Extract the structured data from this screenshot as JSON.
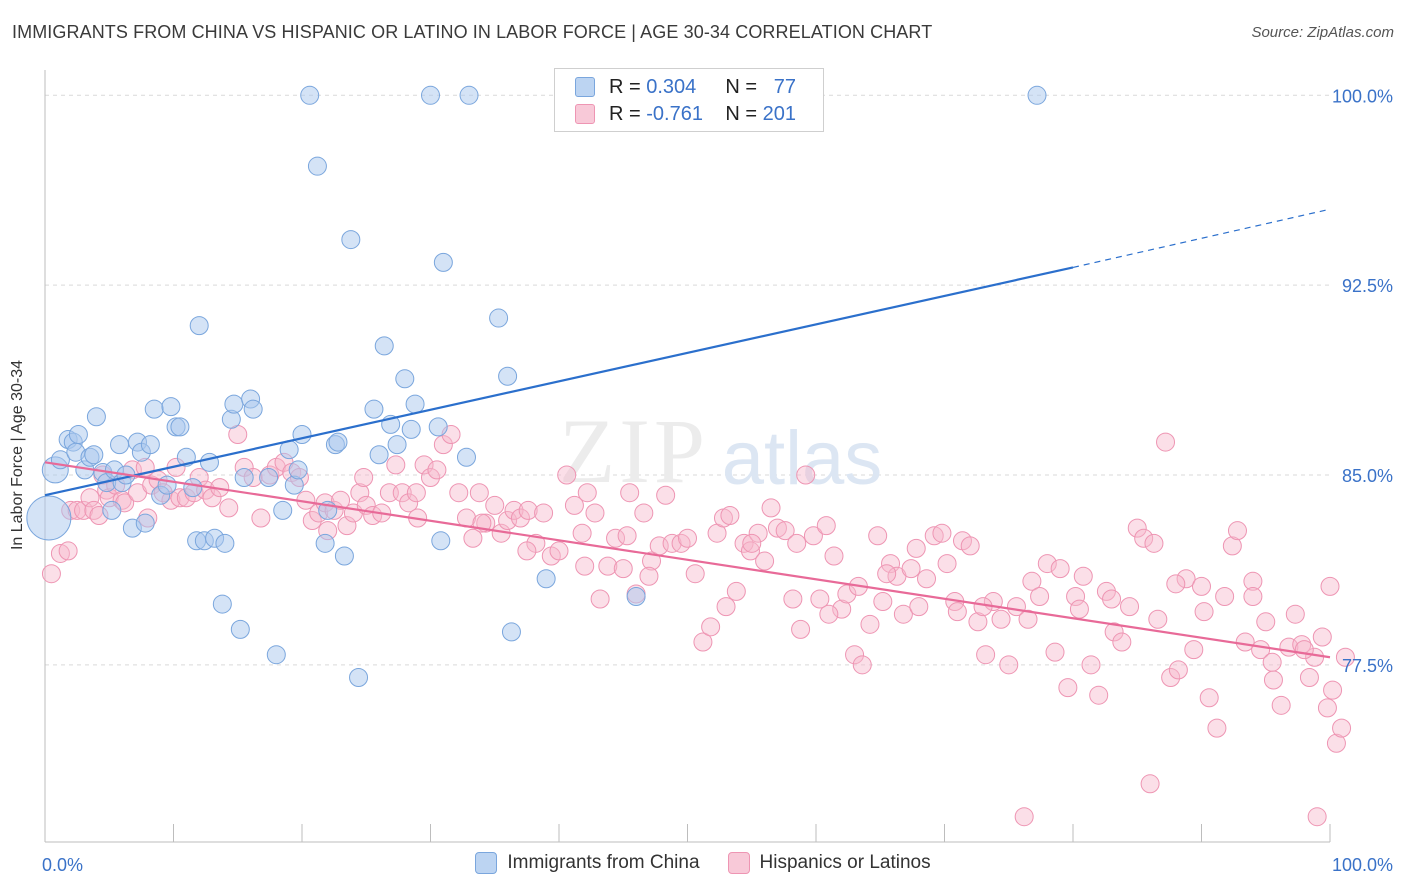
{
  "header": {
    "title": "IMMIGRANTS FROM CHINA VS HISPANIC OR LATINO IN LABOR FORCE | AGE 30-34 CORRELATION CHART",
    "source": "Source: ZipAtlas.com"
  },
  "watermark": {
    "zip": "ZIP",
    "atlas": "atlas"
  },
  "legend": {
    "rows": [
      {
        "r_label": "R =",
        "r_value": "0.304",
        "n_label": "N =",
        "n_value": "77"
      },
      {
        "r_label": "R =",
        "r_value": "-0.761",
        "n_label": "N =",
        "n_value": "201"
      }
    ]
  },
  "bottom_legend": {
    "items": [
      "Immigrants from China",
      "Hispanics or Latinos"
    ]
  },
  "colors": {
    "blue_fill": "#a9c8ee",
    "blue_stroke": "#7aa6dd",
    "blue_line": "#2b6fcc",
    "pink_fill": "#f6b9cd",
    "pink_stroke": "#ee95b3",
    "pink_line": "#e86a98",
    "axis_text": "#3a72c8",
    "grid": "#d9d9d9"
  },
  "chart_data": {
    "type": "scatter",
    "title": "IMMIGRANTS FROM CHINA VS HISPANIC OR LATINO IN LABOR FORCE | AGE 30-34 CORRELATION CHART",
    "xlabel": "",
    "ylabel": "In Labor Force | Age 30-34",
    "xlim": [
      0,
      100
    ],
    "ylim": [
      70.5,
      101
    ],
    "x_tick_labels": [
      {
        "value": 0,
        "label": "0.0%"
      },
      {
        "value": 100,
        "label": "100.0%"
      }
    ],
    "y_ticks": [
      {
        "value": 77.5,
        "label": "77.5%"
      },
      {
        "value": 85.0,
        "label": "85.0%"
      },
      {
        "value": 92.5,
        "label": "92.5%"
      },
      {
        "value": 100.0,
        "label": "100.0%"
      }
    ],
    "grid": true,
    "legend_position": "top-center",
    "series": [
      {
        "name": "Immigrants from China",
        "color": "#a9c8ee",
        "trend": {
          "x0": 0,
          "y0": 84.2,
          "x1": 80,
          "y1": 93.2,
          "dashed_to_x": 100,
          "dashed_to_y": 95.5
        },
        "points": [
          [
            0.3,
            83.3
          ],
          [
            0.8,
            85.2
          ],
          [
            1.2,
            85.6
          ],
          [
            1.8,
            86.4
          ],
          [
            2.2,
            86.3
          ],
          [
            2.4,
            85.9
          ],
          [
            2.6,
            86.6
          ],
          [
            3.1,
            85.2
          ],
          [
            3.5,
            85.7
          ],
          [
            3.8,
            85.8
          ],
          [
            4.0,
            87.3
          ],
          [
            4.5,
            85.1
          ],
          [
            4.8,
            84.7
          ],
          [
            5.2,
            83.6
          ],
          [
            5.4,
            85.2
          ],
          [
            5.8,
            86.2
          ],
          [
            6.0,
            84.7
          ],
          [
            6.3,
            85.0
          ],
          [
            6.8,
            82.9
          ],
          [
            7.2,
            86.3
          ],
          [
            7.5,
            85.9
          ],
          [
            7.8,
            83.1
          ],
          [
            8.2,
            86.2
          ],
          [
            8.5,
            87.6
          ],
          [
            9.0,
            84.2
          ],
          [
            9.5,
            84.6
          ],
          [
            9.8,
            87.7
          ],
          [
            10.2,
            86.9
          ],
          [
            10.5,
            86.9
          ],
          [
            11.0,
            85.7
          ],
          [
            11.5,
            84.5
          ],
          [
            11.8,
            82.4
          ],
          [
            12.0,
            90.9
          ],
          [
            12.4,
            82.4
          ],
          [
            12.8,
            85.5
          ],
          [
            13.2,
            82.5
          ],
          [
            13.8,
            79.9
          ],
          [
            14.0,
            82.3
          ],
          [
            14.5,
            87.2
          ],
          [
            14.7,
            87.8
          ],
          [
            15.2,
            78.9
          ],
          [
            15.5,
            84.9
          ],
          [
            16.0,
            88.0
          ],
          [
            16.2,
            87.6
          ],
          [
            17.4,
            84.9
          ],
          [
            18.0,
            77.9
          ],
          [
            18.5,
            83.6
          ],
          [
            19.0,
            86.0
          ],
          [
            19.4,
            84.6
          ],
          [
            19.7,
            85.2
          ],
          [
            20.0,
            86.6
          ],
          [
            20.6,
            100.0
          ],
          [
            21.2,
            97.2
          ],
          [
            21.8,
            82.3
          ],
          [
            22.0,
            83.6
          ],
          [
            22.6,
            86.2
          ],
          [
            22.8,
            86.3
          ],
          [
            23.3,
            81.8
          ],
          [
            23.8,
            94.3
          ],
          [
            24.4,
            77.0
          ],
          [
            25.6,
            87.6
          ],
          [
            26.0,
            85.8
          ],
          [
            26.4,
            90.1
          ],
          [
            26.9,
            87.0
          ],
          [
            27.4,
            86.2
          ],
          [
            28.0,
            88.8
          ],
          [
            28.5,
            86.8
          ],
          [
            28.8,
            87.8
          ],
          [
            30.0,
            100.0
          ],
          [
            30.6,
            86.9
          ],
          [
            30.8,
            82.4
          ],
          [
            31.0,
            93.4
          ],
          [
            32.8,
            85.7
          ],
          [
            33.0,
            100.0
          ],
          [
            35.3,
            91.2
          ],
          [
            36.0,
            88.9
          ],
          [
            36.3,
            78.8
          ],
          [
            39.0,
            80.9
          ],
          [
            46.0,
            80.2
          ],
          [
            77.2,
            100.0
          ]
        ]
      },
      {
        "name": "Hispanics or Latinos",
        "color": "#f6b9cd",
        "trend": {
          "x0": 0,
          "y0": 85.5,
          "x1": 100,
          "y1": 77.8
        },
        "points": [
          [
            0.5,
            81.1
          ],
          [
            1.2,
            81.9
          ],
          [
            1.8,
            82.0
          ],
          [
            2.0,
            83.6
          ],
          [
            2.5,
            83.6
          ],
          [
            3.0,
            83.6
          ],
          [
            3.5,
            84.1
          ],
          [
            3.8,
            83.6
          ],
          [
            4.2,
            83.4
          ],
          [
            4.5,
            85.0
          ],
          [
            4.8,
            84.4
          ],
          [
            5.0,
            84.1
          ],
          [
            5.5,
            84.6
          ],
          [
            6.0,
            84.0
          ],
          [
            6.2,
            83.9
          ],
          [
            6.8,
            85.2
          ],
          [
            7.2,
            84.3
          ],
          [
            7.8,
            85.3
          ],
          [
            8.0,
            83.3
          ],
          [
            8.3,
            84.6
          ],
          [
            8.8,
            84.8
          ],
          [
            9.2,
            84.3
          ],
          [
            9.8,
            84.0
          ],
          [
            10.2,
            85.3
          ],
          [
            10.5,
            84.1
          ],
          [
            11.0,
            84.1
          ],
          [
            11.6,
            84.3
          ],
          [
            12.0,
            84.9
          ],
          [
            12.5,
            84.4
          ],
          [
            13.0,
            84.1
          ],
          [
            13.6,
            84.5
          ],
          [
            14.3,
            83.7
          ],
          [
            15.0,
            86.6
          ],
          [
            15.5,
            85.3
          ],
          [
            16.2,
            84.9
          ],
          [
            16.8,
            83.3
          ],
          [
            17.5,
            85.0
          ],
          [
            18.0,
            85.3
          ],
          [
            18.6,
            85.5
          ],
          [
            19.2,
            85.1
          ],
          [
            19.8,
            84.9
          ],
          [
            20.3,
            84.0
          ],
          [
            20.8,
            83.2
          ],
          [
            21.3,
            83.5
          ],
          [
            21.8,
            83.9
          ],
          [
            22.0,
            82.8
          ],
          [
            22.5,
            83.6
          ],
          [
            23.0,
            84.0
          ],
          [
            23.5,
            83.0
          ],
          [
            24.0,
            83.5
          ],
          [
            24.5,
            84.3
          ],
          [
            25.0,
            83.8
          ],
          [
            25.5,
            83.4
          ],
          [
            26.2,
            83.5
          ],
          [
            26.8,
            84.3
          ],
          [
            27.3,
            85.4
          ],
          [
            27.8,
            84.3
          ],
          [
            28.3,
            83.9
          ],
          [
            28.9,
            84.3
          ],
          [
            29.5,
            85.4
          ],
          [
            30.0,
            84.9
          ],
          [
            30.5,
            85.2
          ],
          [
            31.0,
            86.2
          ],
          [
            31.6,
            86.6
          ],
          [
            32.2,
            84.3
          ],
          [
            32.8,
            83.3
          ],
          [
            33.3,
            82.5
          ],
          [
            33.8,
            84.3
          ],
          [
            34.3,
            83.1
          ],
          [
            35.0,
            83.8
          ],
          [
            35.5,
            82.7
          ],
          [
            36.0,
            83.2
          ],
          [
            36.5,
            83.6
          ],
          [
            37.0,
            83.3
          ],
          [
            37.6,
            83.6
          ],
          [
            38.2,
            82.3
          ],
          [
            38.8,
            83.5
          ],
          [
            39.4,
            81.8
          ],
          [
            40.0,
            82.0
          ],
          [
            40.6,
            85.0
          ],
          [
            41.2,
            83.8
          ],
          [
            41.8,
            82.7
          ],
          [
            42.2,
            84.3
          ],
          [
            42.8,
            83.5
          ],
          [
            43.2,
            80.1
          ],
          [
            43.8,
            81.4
          ],
          [
            44.4,
            82.5
          ],
          [
            45.0,
            81.3
          ],
          [
            45.5,
            84.3
          ],
          [
            46.0,
            80.3
          ],
          [
            46.6,
            83.5
          ],
          [
            47.2,
            81.6
          ],
          [
            47.8,
            82.2
          ],
          [
            48.3,
            84.2
          ],
          [
            48.8,
            82.3
          ],
          [
            49.5,
            82.3
          ],
          [
            50.0,
            82.5
          ],
          [
            50.6,
            81.1
          ],
          [
            51.2,
            78.4
          ],
          [
            51.8,
            79.0
          ],
          [
            52.3,
            82.7
          ],
          [
            52.8,
            83.3
          ],
          [
            53.3,
            83.4
          ],
          [
            53.8,
            80.4
          ],
          [
            54.4,
            82.3
          ],
          [
            54.9,
            82.0
          ],
          [
            55.5,
            82.7
          ],
          [
            56.0,
            81.6
          ],
          [
            56.5,
            83.7
          ],
          [
            57.0,
            82.9
          ],
          [
            57.6,
            82.8
          ],
          [
            58.2,
            80.1
          ],
          [
            58.8,
            78.9
          ],
          [
            59.2,
            85.0
          ],
          [
            59.8,
            82.6
          ],
          [
            60.3,
            80.1
          ],
          [
            60.8,
            83.0
          ],
          [
            61.4,
            81.8
          ],
          [
            62.0,
            79.7
          ],
          [
            62.4,
            80.3
          ],
          [
            63.0,
            77.9
          ],
          [
            63.6,
            77.5
          ],
          [
            64.2,
            79.1
          ],
          [
            64.8,
            82.6
          ],
          [
            65.2,
            80.0
          ],
          [
            65.8,
            81.5
          ],
          [
            66.3,
            81.0
          ],
          [
            66.8,
            79.5
          ],
          [
            67.4,
            81.3
          ],
          [
            68.0,
            79.8
          ],
          [
            68.6,
            80.9
          ],
          [
            69.2,
            82.6
          ],
          [
            69.8,
            82.7
          ],
          [
            70.2,
            81.5
          ],
          [
            70.8,
            80.0
          ],
          [
            71.4,
            82.4
          ],
          [
            72.0,
            82.2
          ],
          [
            72.6,
            79.2
          ],
          [
            73.2,
            77.9
          ],
          [
            73.8,
            80.0
          ],
          [
            74.4,
            79.3
          ],
          [
            75.0,
            77.5
          ],
          [
            75.6,
            79.8
          ],
          [
            76.2,
            71.5
          ],
          [
            76.8,
            80.8
          ],
          [
            77.4,
            80.2
          ],
          [
            78.0,
            81.5
          ],
          [
            78.6,
            78.0
          ],
          [
            79.0,
            81.3
          ],
          [
            79.6,
            76.6
          ],
          [
            80.2,
            80.2
          ],
          [
            80.8,
            81.0
          ],
          [
            81.4,
            77.5
          ],
          [
            82.0,
            76.3
          ],
          [
            82.6,
            80.4
          ],
          [
            83.2,
            78.8
          ],
          [
            83.8,
            78.4
          ],
          [
            84.4,
            79.8
          ],
          [
            85.0,
            82.9
          ],
          [
            85.5,
            82.5
          ],
          [
            86.0,
            72.8
          ],
          [
            86.6,
            79.3
          ],
          [
            87.2,
            86.3
          ],
          [
            87.6,
            77.0
          ],
          [
            88.2,
            77.3
          ],
          [
            88.8,
            80.9
          ],
          [
            89.4,
            78.1
          ],
          [
            90.0,
            80.6
          ],
          [
            90.6,
            76.2
          ],
          [
            91.2,
            75.0
          ],
          [
            91.8,
            80.2
          ],
          [
            92.4,
            82.2
          ],
          [
            92.8,
            82.8
          ],
          [
            93.4,
            78.4
          ],
          [
            94.0,
            80.8
          ],
          [
            94.6,
            78.1
          ],
          [
            95.0,
            79.2
          ],
          [
            95.6,
            76.9
          ],
          [
            96.2,
            75.9
          ],
          [
            96.8,
            78.2
          ],
          [
            97.3,
            79.5
          ],
          [
            97.8,
            78.3
          ],
          [
            98.4,
            77.0
          ],
          [
            98.8,
            77.8
          ],
          [
            99.0,
            71.5
          ],
          [
            99.4,
            78.6
          ],
          [
            99.8,
            75.8
          ],
          [
            100.0,
            80.6
          ],
          [
            100.5,
            74.4
          ],
          [
            100.9,
            75.0
          ],
          [
            101.2,
            77.8
          ],
          [
            45.3,
            82.6
          ],
          [
            55.0,
            82.3
          ],
          [
            37.5,
            82.0
          ],
          [
            29.0,
            83.3
          ],
          [
            24.8,
            84.9
          ],
          [
            34.0,
            83.1
          ],
          [
            61.0,
            79.5
          ],
          [
            67.8,
            82.1
          ],
          [
            73.0,
            79.8
          ],
          [
            80.5,
            79.7
          ],
          [
            86.3,
            82.3
          ],
          [
            90.2,
            79.6
          ],
          [
            94.0,
            80.2
          ],
          [
            98.0,
            78.1
          ],
          [
            53.0,
            79.8
          ],
          [
            42.0,
            81.4
          ],
          [
            47.0,
            81.0
          ],
          [
            58.5,
            82.3
          ],
          [
            63.3,
            80.6
          ],
          [
            71.0,
            79.6
          ],
          [
            76.5,
            79.3
          ],
          [
            83.0,
            80.1
          ],
          [
            88.0,
            80.7
          ],
          [
            95.5,
            77.6
          ],
          [
            100.2,
            76.5
          ],
          [
            65.5,
            81.1
          ]
        ]
      }
    ]
  }
}
